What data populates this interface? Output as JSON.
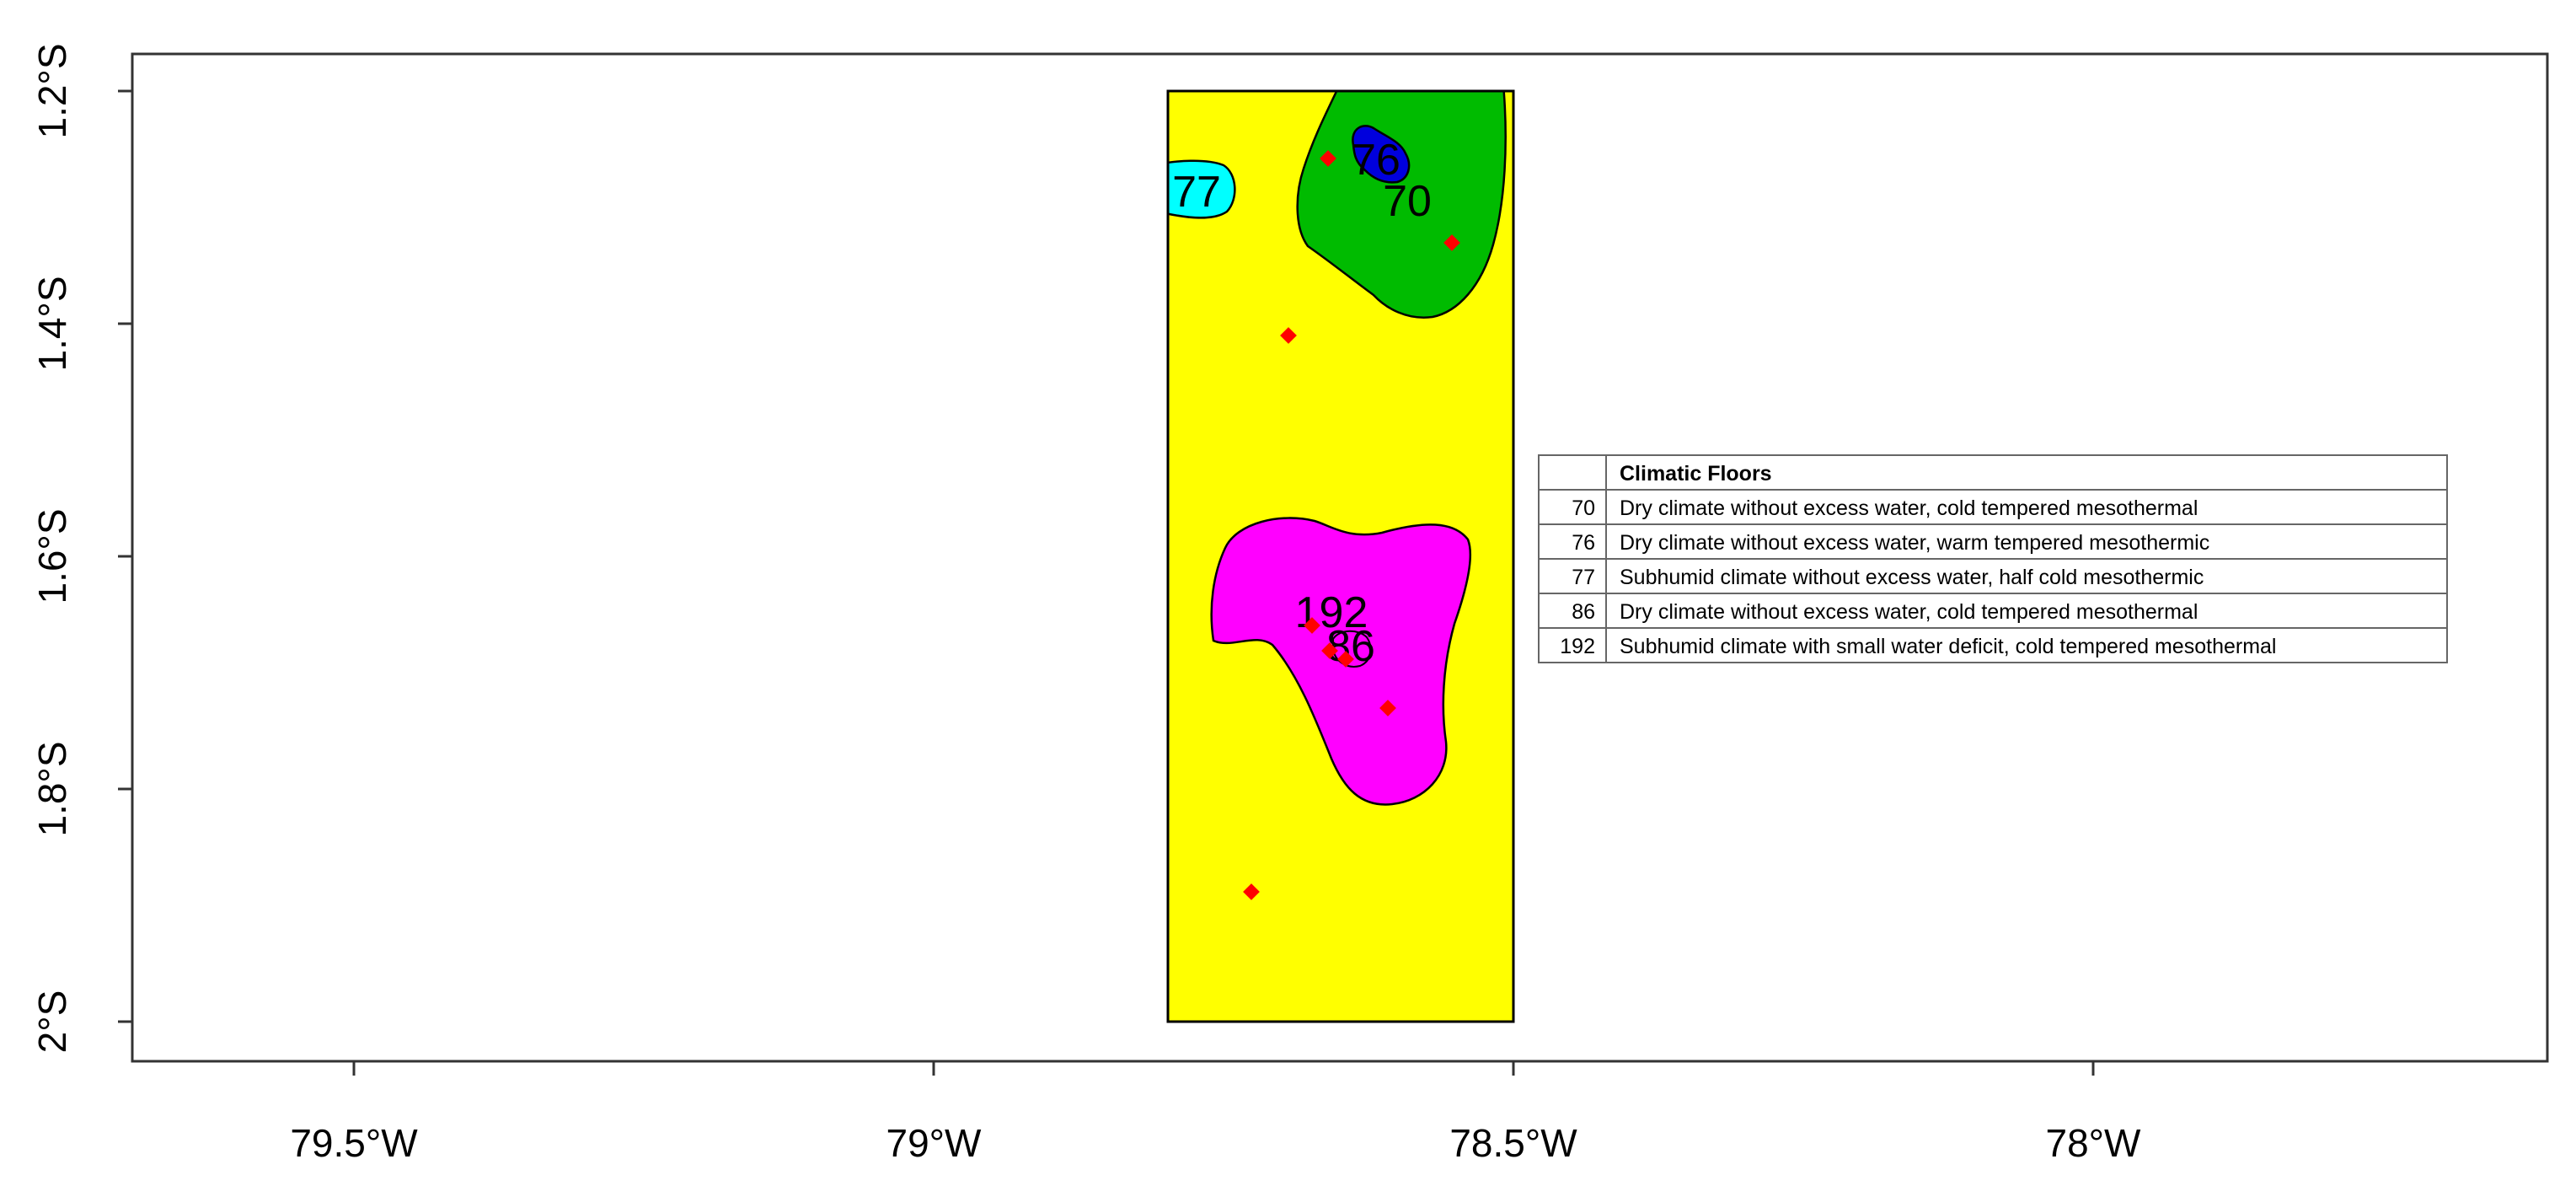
{
  "map": {
    "x_tick_labels": [
      "79.5°W",
      "79°W",
      "78.5°W",
      "78°W"
    ],
    "y_tick_labels": [
      "1.2°S",
      "1.4°S",
      "1.6°S",
      "1.8°S",
      "2°S"
    ]
  },
  "regions": [
    {
      "id": "yellow-background",
      "color": "#FFFF00"
    },
    {
      "id": "region-70",
      "label": "70",
      "color": "#00BB00"
    },
    {
      "id": "region-76",
      "label": "76",
      "color": "#0000DD"
    },
    {
      "id": "region-77",
      "label": "77",
      "color": "#00FFFF"
    },
    {
      "id": "region-192",
      "label": "192",
      "color": "#FF00FF"
    },
    {
      "id": "region-86",
      "label": "86",
      "color": "#FF00FF"
    }
  ],
  "stations": {
    "color": "#FF0000",
    "count": 8
  },
  "legend": {
    "title": "Climatic Floors",
    "rows": [
      {
        "code": "70",
        "description": "Dry climate without excess water, cold tempered mesothermal"
      },
      {
        "code": "76",
        "description": "Dry climate without excess water, warm tempered mesothermic"
      },
      {
        "code": "77",
        "description": "Subhumid climate without excess water, half cold mesothermic"
      },
      {
        "code": "86",
        "description": "Dry climate without excess water, cold tempered mesothermal"
      },
      {
        "code": "192",
        "description": "Subhumid climate with small water deficit, cold tempered mesothermal"
      }
    ]
  }
}
